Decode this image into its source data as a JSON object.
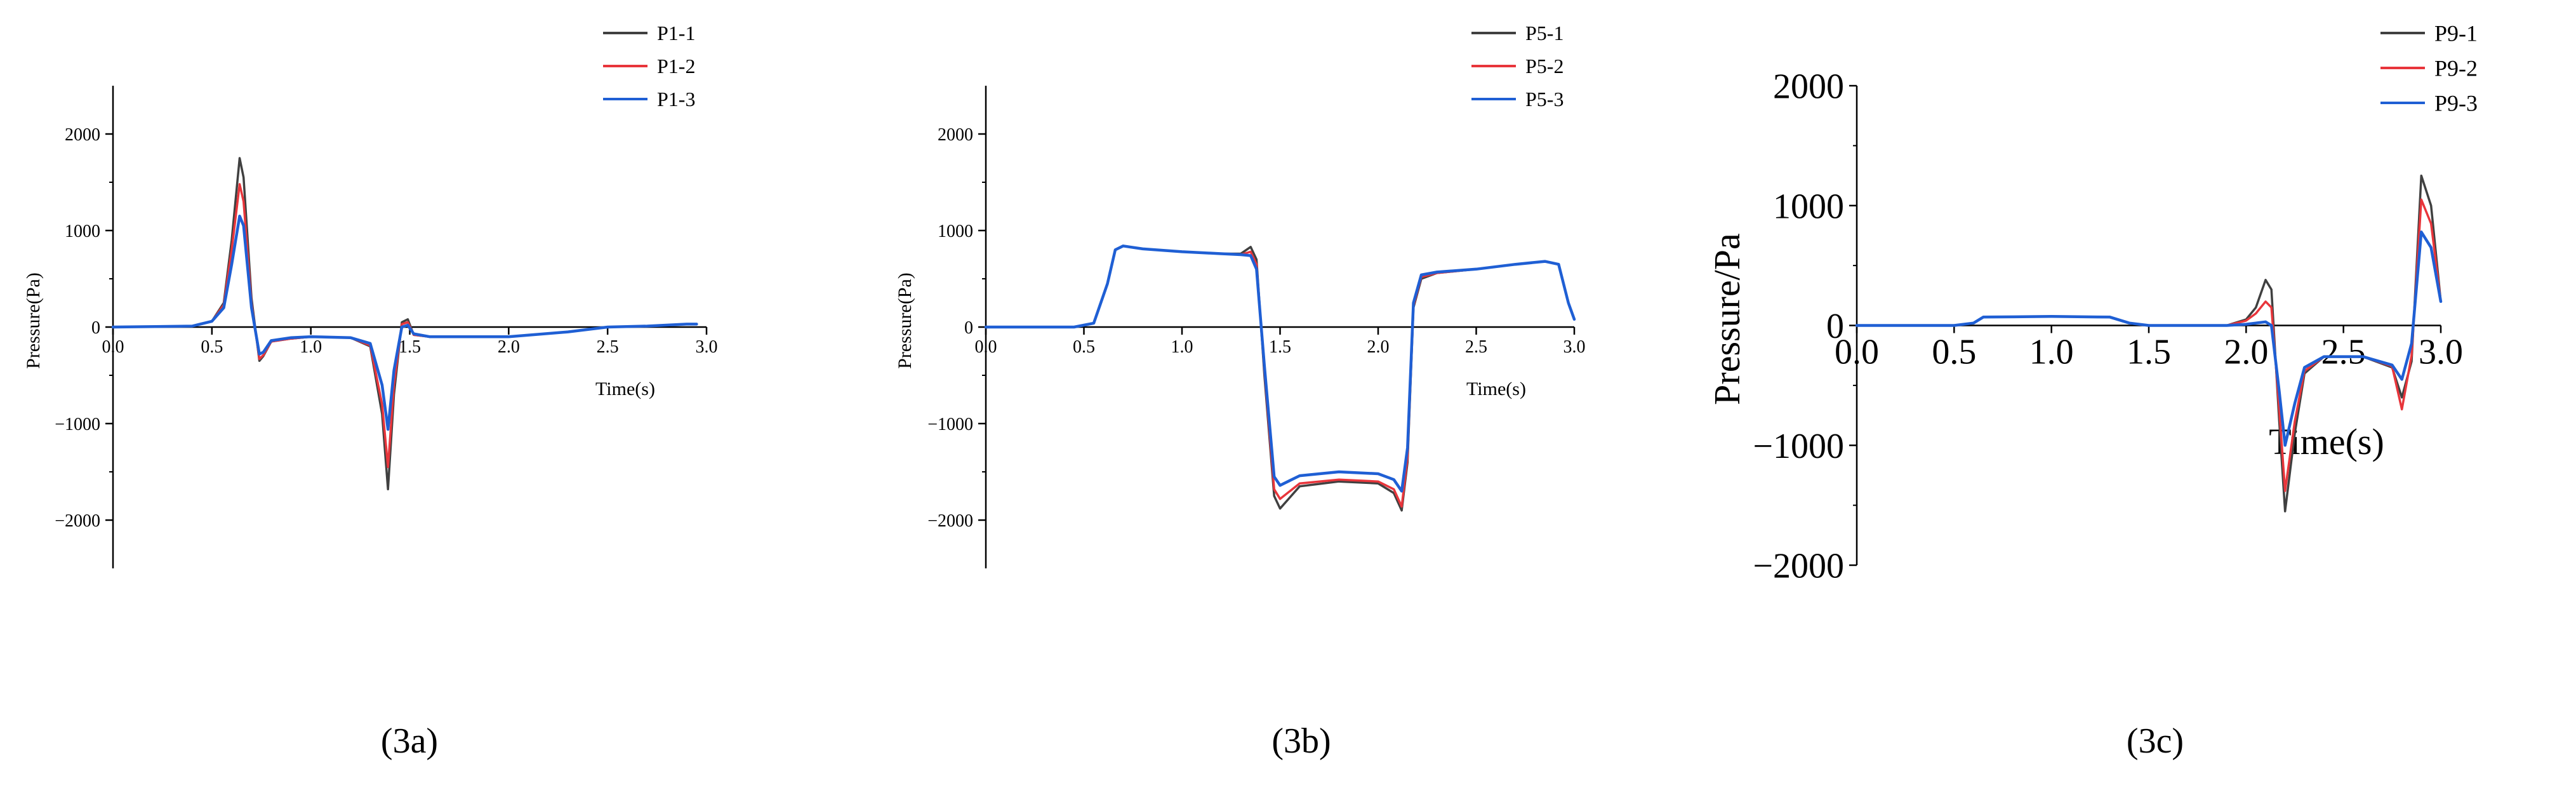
{
  "figure_labels": [
    "(3a)",
    "(3b)",
    "(3c)"
  ],
  "colors": {
    "series_1": "#404040",
    "series_2": "#e8353b",
    "series_3": "#1f5fd4",
    "axis": "#000000",
    "background": "#ffffff"
  },
  "chart_data": [
    {
      "type": "line",
      "title": "",
      "panel_label": "(3a)",
      "xlabel": "Time(s)",
      "ylabel": "Pressure(Pa)",
      "xlim": [
        0.0,
        3.0
      ],
      "ylim": [
        -2500,
        2500
      ],
      "xticks": [
        0.0,
        0.5,
        1.0,
        1.5,
        2.0,
        2.5,
        3.0
      ],
      "xtick_labels": [
        "0.0",
        "0.5",
        "1.0",
        "1.5",
        "2.0",
        "2.5",
        "3.0"
      ],
      "yticks": [
        -2000,
        -1000,
        0,
        1000,
        2000
      ],
      "ytick_labels": [
        "−2000",
        "−1000",
        "0",
        "1000",
        "2000"
      ],
      "legend": "top-right",
      "grid": false,
      "series": [
        {
          "name": "P1-1",
          "x": [
            0.0,
            0.4,
            0.5,
            0.56,
            0.6,
            0.64,
            0.66,
            0.7,
            0.74,
            0.76,
            0.8,
            0.9,
            1.0,
            1.2,
            1.3,
            1.36,
            1.39,
            1.42,
            1.46,
            1.49,
            1.52,
            1.6,
            2.0,
            2.3,
            2.5,
            2.7,
            2.9,
            2.95
          ],
          "y": [
            0,
            10,
            60,
            250,
            900,
            1750,
            1550,
            300,
            -350,
            -300,
            -150,
            -120,
            -100,
            -110,
            -200,
            -900,
            -1680,
            -700,
            50,
            80,
            -80,
            -100,
            -100,
            -50,
            0,
            10,
            30,
            30
          ]
        },
        {
          "name": "P1-2",
          "x": [
            0.0,
            0.4,
            0.5,
            0.56,
            0.6,
            0.64,
            0.66,
            0.7,
            0.74,
            0.76,
            0.8,
            0.9,
            1.0,
            1.2,
            1.3,
            1.36,
            1.39,
            1.42,
            1.46,
            1.49,
            1.52,
            1.6,
            2.0,
            2.3,
            2.5,
            2.7,
            2.9,
            2.95
          ],
          "y": [
            0,
            10,
            60,
            230,
            800,
            1480,
            1300,
            250,
            -330,
            -290,
            -150,
            -120,
            -100,
            -110,
            -190,
            -800,
            -1450,
            -600,
            30,
            50,
            -80,
            -100,
            -100,
            -50,
            0,
            10,
            30,
            30
          ]
        },
        {
          "name": "P1-3",
          "x": [
            0.0,
            0.4,
            0.5,
            0.56,
            0.6,
            0.64,
            0.66,
            0.7,
            0.74,
            0.76,
            0.8,
            0.9,
            1.0,
            1.2,
            1.3,
            1.36,
            1.39,
            1.42,
            1.46,
            1.49,
            1.52,
            1.6,
            2.0,
            2.3,
            2.5,
            2.7,
            2.9,
            2.95
          ],
          "y": [
            0,
            10,
            60,
            200,
            650,
            1150,
            1050,
            200,
            -280,
            -260,
            -140,
            -110,
            -100,
            -110,
            -170,
            -600,
            -1060,
            -450,
            0,
            20,
            -70,
            -100,
            -100,
            -50,
            0,
            10,
            30,
            30
          ]
        }
      ]
    },
    {
      "type": "line",
      "title": "",
      "panel_label": "(3b)",
      "xlabel": "Time(s)",
      "ylabel": "Pressure(Pa)",
      "xlim": [
        0.0,
        3.0
      ],
      "ylim": [
        -2500,
        2500
      ],
      "xticks": [
        0.0,
        0.5,
        1.0,
        1.5,
        2.0,
        2.5,
        3.0
      ],
      "xtick_labels": [
        "0.0",
        "0.5",
        "1.0",
        "1.5",
        "2.0",
        "2.5",
        "3.0"
      ],
      "yticks": [
        -2000,
        -1000,
        0,
        1000,
        2000
      ],
      "ytick_labels": [
        "−2000",
        "−1000",
        "0",
        "1000",
        "2000"
      ],
      "legend": "top-right",
      "grid": false,
      "series": [
        {
          "name": "P5-1",
          "x": [
            0.0,
            0.45,
            0.55,
            0.62,
            0.66,
            0.7,
            0.8,
            1.0,
            1.2,
            1.3,
            1.35,
            1.38,
            1.42,
            1.47,
            1.5,
            1.6,
            1.8,
            2.0,
            2.08,
            2.12,
            2.15,
            2.18,
            2.22,
            2.3,
            2.5,
            2.7,
            2.85,
            2.92,
            2.97,
            3.0
          ],
          "y": [
            0,
            0,
            40,
            450,
            800,
            840,
            810,
            780,
            760,
            760,
            830,
            700,
            -500,
            -1750,
            -1880,
            -1650,
            -1600,
            -1620,
            -1720,
            -1900,
            -1400,
            200,
            500,
            560,
            600,
            650,
            680,
            650,
            250,
            80
          ]
        },
        {
          "name": "P5-2",
          "x": [
            0.0,
            0.45,
            0.55,
            0.62,
            0.66,
            0.7,
            0.8,
            1.0,
            1.2,
            1.3,
            1.35,
            1.38,
            1.42,
            1.47,
            1.5,
            1.6,
            1.8,
            2.0,
            2.08,
            2.12,
            2.15,
            2.18,
            2.22,
            2.3,
            2.5,
            2.7,
            2.85,
            2.92,
            2.97,
            3.0
          ],
          "y": [
            0,
            0,
            40,
            450,
            800,
            840,
            810,
            780,
            760,
            750,
            780,
            650,
            -450,
            -1680,
            -1780,
            -1620,
            -1580,
            -1600,
            -1680,
            -1860,
            -1350,
            220,
            520,
            560,
            600,
            650,
            680,
            650,
            250,
            80
          ]
        },
        {
          "name": "P5-3",
          "x": [
            0.0,
            0.45,
            0.55,
            0.62,
            0.66,
            0.7,
            0.8,
            1.0,
            1.2,
            1.3,
            1.35,
            1.38,
            1.42,
            1.47,
            1.5,
            1.6,
            1.8,
            2.0,
            2.08,
            2.12,
            2.15,
            2.18,
            2.22,
            2.3,
            2.5,
            2.7,
            2.85,
            2.92,
            2.97,
            3.0
          ],
          "y": [
            0,
            0,
            40,
            450,
            800,
            840,
            810,
            780,
            760,
            750,
            740,
            600,
            -400,
            -1550,
            -1640,
            -1540,
            -1500,
            -1520,
            -1580,
            -1700,
            -1250,
            250,
            540,
            570,
            600,
            650,
            680,
            650,
            250,
            80
          ]
        }
      ]
    },
    {
      "type": "line",
      "title": "",
      "panel_label": "(3c)",
      "xlabel": "Time(s)",
      "ylabel": "Pressure/Pa",
      "xlim": [
        0.0,
        3.0
      ],
      "ylim": [
        -2000,
        2000
      ],
      "xticks": [
        0.0,
        0.5,
        1.0,
        1.5,
        2.0,
        2.5,
        3.0
      ],
      "xtick_labels": [
        "0.0",
        "0.5",
        "1.0",
        "1.5",
        "2.0",
        "2.5",
        "3.0"
      ],
      "yticks": [
        -2000,
        -1000,
        0,
        1000,
        2000
      ],
      "ytick_labels": [
        "−2000",
        "−1000",
        "0",
        "1000",
        "2000"
      ],
      "legend": "top-right",
      "grid": false,
      "series": [
        {
          "name": "P9-1",
          "x": [
            0.0,
            0.5,
            0.6,
            0.65,
            1.0,
            1.3,
            1.4,
            1.5,
            1.9,
            2.0,
            2.05,
            2.1,
            2.13,
            2.17,
            2.2,
            2.25,
            2.3,
            2.4,
            2.6,
            2.75,
            2.8,
            2.85,
            2.9,
            2.95,
            3.0
          ],
          "y": [
            0,
            0,
            20,
            70,
            75,
            70,
            20,
            0,
            0,
            50,
            150,
            380,
            300,
            -800,
            -1550,
            -900,
            -400,
            -260,
            -260,
            -350,
            -600,
            -300,
            1250,
            1000,
            200
          ]
        },
        {
          "name": "P9-2",
          "x": [
            0.0,
            0.5,
            0.6,
            0.65,
            1.0,
            1.3,
            1.4,
            1.5,
            1.9,
            2.0,
            2.05,
            2.1,
            2.13,
            2.17,
            2.2,
            2.25,
            2.3,
            2.4,
            2.6,
            2.75,
            2.8,
            2.85,
            2.9,
            2.95,
            3.0
          ],
          "y": [
            0,
            0,
            20,
            70,
            75,
            70,
            20,
            0,
            0,
            40,
            100,
            200,
            150,
            -700,
            -1380,
            -800,
            -380,
            -260,
            -260,
            -340,
            -700,
            -250,
            1050,
            850,
            200
          ]
        },
        {
          "name": "P9-3",
          "x": [
            0.0,
            0.5,
            0.6,
            0.65,
            1.0,
            1.3,
            1.4,
            1.5,
            1.9,
            2.0,
            2.05,
            2.1,
            2.13,
            2.17,
            2.2,
            2.25,
            2.3,
            2.4,
            2.6,
            2.75,
            2.8,
            2.85,
            2.9,
            2.95,
            3.0
          ],
          "y": [
            0,
            0,
            20,
            70,
            75,
            70,
            20,
            0,
            0,
            10,
            20,
            30,
            0,
            -550,
            -1000,
            -650,
            -350,
            -260,
            -260,
            -330,
            -450,
            -150,
            780,
            650,
            200
          ]
        }
      ]
    }
  ]
}
